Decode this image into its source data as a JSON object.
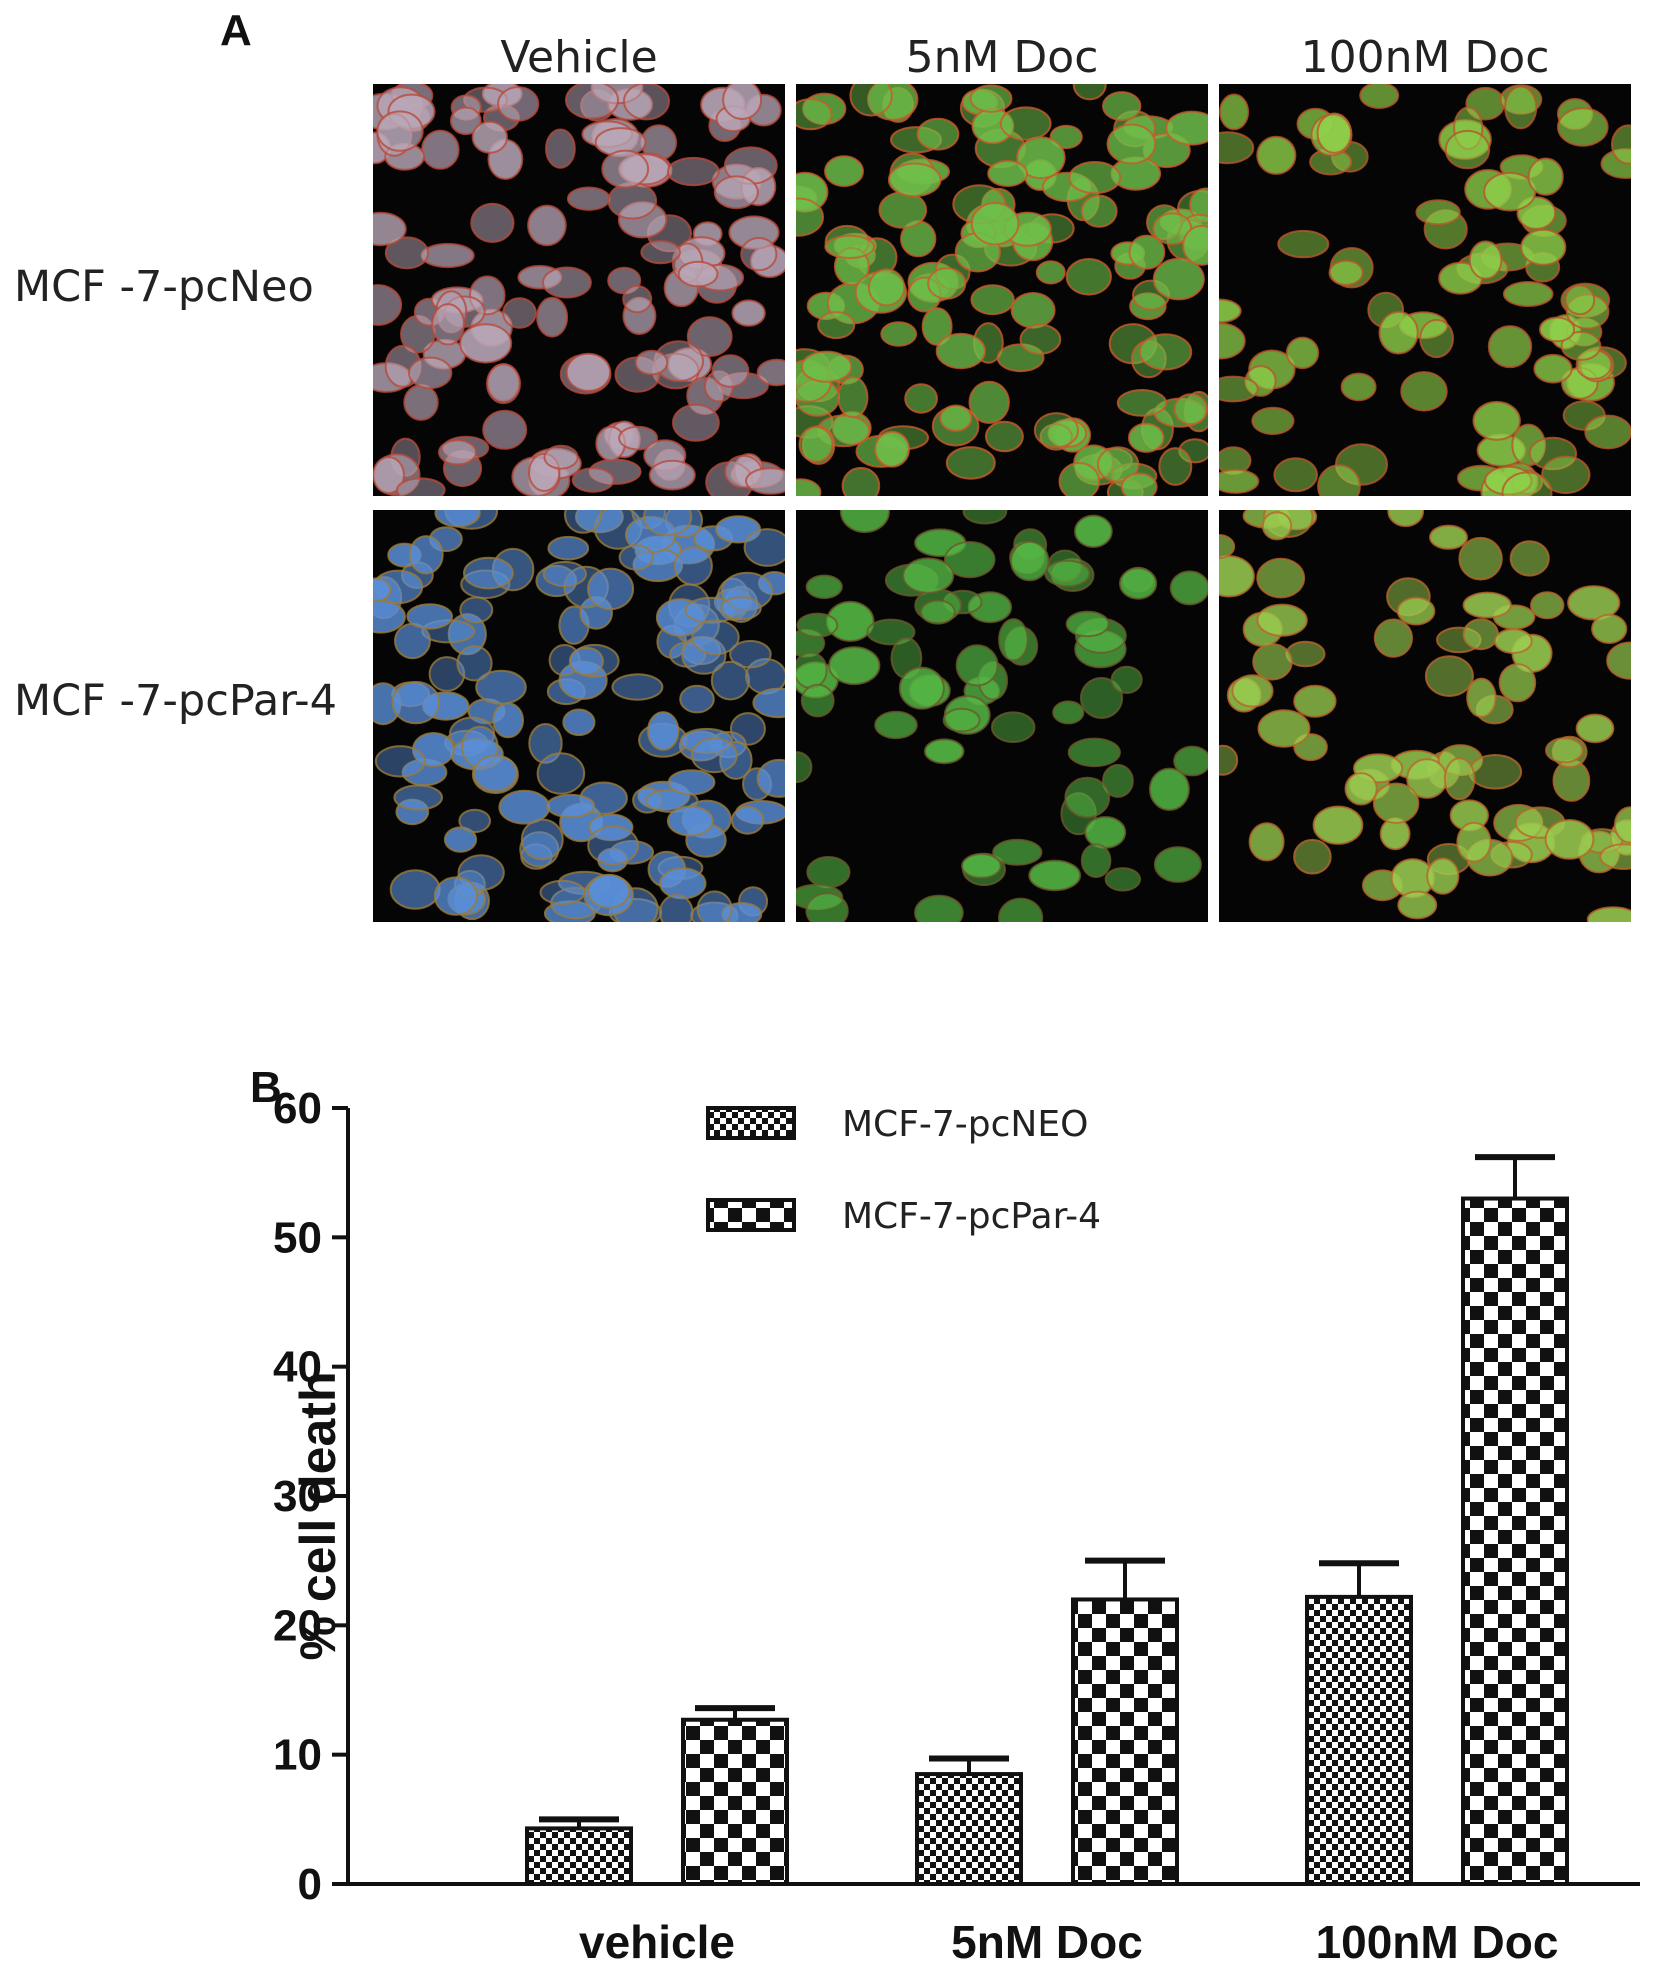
{
  "panel_a": {
    "letter": "A",
    "columns": [
      "Vehicle",
      "5nM Doc",
      "100nM Doc"
    ],
    "rows": [
      "MCF -7-pcNeo",
      "MCF -7-pcPar-4"
    ],
    "images": [
      {
        "row": 0,
        "col": 0,
        "tint": "#b9a7b8",
        "membrane": "#b84a3a",
        "density": 0.85
      },
      {
        "row": 0,
        "col": 1,
        "tint": "#6fbf4a",
        "membrane": "#c85a2a",
        "density": 0.9
      },
      {
        "row": 0,
        "col": 2,
        "tint": "#8fd04a",
        "membrane": "#b8562a",
        "density": 0.55
      },
      {
        "row": 1,
        "col": 0,
        "tint": "#5a8fd8",
        "membrane": "#9a7a3a",
        "density": 0.95
      },
      {
        "row": 1,
        "col": 1,
        "tint": "#55b845",
        "membrane": "#6a5a2a",
        "density": 0.45
      },
      {
        "row": 1,
        "col": 2,
        "tint": "#9acd50",
        "membrane": "#b8662a",
        "density": 0.5
      }
    ]
  },
  "panel_b": {
    "letter": "B"
  },
  "chart_data": {
    "type": "bar",
    "categories": [
      "vehicle",
      "5nM Doc",
      "100nM Doc"
    ],
    "series": [
      {
        "name": "MCF-7-pcNEO",
        "values": [
          4.3,
          8.5,
          22.2
        ],
        "errors": [
          0.7,
          1.2,
          2.6
        ],
        "pattern": "fine-checker"
      },
      {
        "name": "MCF-7-pcPar-4",
        "values": [
          12.7,
          22.0,
          53.0
        ],
        "errors": [
          0.9,
          3.0,
          3.2
        ],
        "pattern": "coarse-checker"
      }
    ],
    "xlabel": "",
    "ylabel": "% cell death",
    "ylim": [
      0,
      60
    ],
    "yticks": [
      0,
      10,
      20,
      30,
      40,
      50,
      60
    ],
    "legend_position": "top-center",
    "grid": false
  }
}
